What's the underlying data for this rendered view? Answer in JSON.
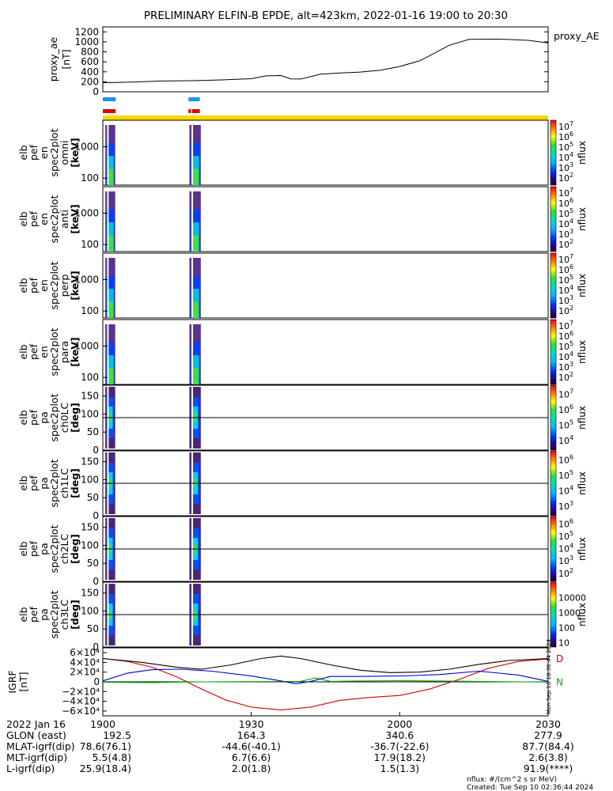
{
  "title": "PRELIMINARY ELFIN-B EPDE, alt=423km, 2022-01-16 19:00 to 20:30",
  "chart_data": [
    {
      "type": "line",
      "name": "proxy_ae",
      "ylabel": [
        "proxy_ae",
        "[nT]"
      ],
      "legend": "proxy_AE",
      "ylim": [
        0,
        1300
      ],
      "yticks": [
        0,
        200,
        400,
        600,
        800,
        1000,
        1200
      ],
      "xlim": [
        0,
        90
      ],
      "x": [
        0,
        6,
        12,
        18,
        24,
        30,
        33,
        36,
        38,
        40,
        44,
        48,
        52,
        56,
        60,
        64,
        66,
        70,
        74,
        78,
        80,
        82,
        86,
        90
      ],
      "y": [
        180,
        195,
        215,
        222,
        238,
        262,
        318,
        325,
        258,
        255,
        352,
        375,
        395,
        430,
        505,
        620,
        720,
        930,
        1050,
        1055,
        1055,
        1048,
        1030,
        980
      ]
    },
    {
      "type": "heatmap",
      "name": "spectrograms",
      "xlim": [
        0,
        90
      ],
      "science_zones": [
        [
          0.5,
          2.5
        ],
        [
          17.5,
          19.8
        ]
      ],
      "bars": [
        {
          "color": "#1E90FF",
          "segments": [
            [
              0,
              2.6
            ],
            [
              17.3,
              19.6
            ]
          ]
        },
        {
          "color": "#E00000",
          "segments": [
            [
              0,
              2.6
            ],
            [
              17.3,
              17.8
            ],
            [
              18.0,
              19.6
            ]
          ]
        },
        {
          "color": "#FFD700",
          "segments": [
            [
              0,
              90
            ]
          ]
        }
      ],
      "panels": [
        {
          "ylabel": [
            "elb",
            "pef",
            "en",
            "spec2plot",
            "omni",
            "[keV]"
          ],
          "yticks": [
            "100",
            "1000"
          ],
          "cbar_exps": [
            "2",
            "3",
            "4",
            "5",
            "6",
            "7"
          ],
          "cbar_label": "nflux"
        },
        {
          "ylabel": [
            "elb",
            "pef",
            "en",
            "spec2plot",
            "anti",
            "[keV]"
          ],
          "yticks": [
            "100",
            "1000"
          ],
          "cbar_exps": [
            "2",
            "3",
            "4",
            "5",
            "6",
            "7"
          ],
          "cbar_label": "nflux"
        },
        {
          "ylabel": [
            "elb",
            "pef",
            "en",
            "spec2plot",
            "perp",
            "[keV]"
          ],
          "yticks": [
            "100",
            "1000"
          ],
          "cbar_exps": [
            "2",
            "3",
            "4",
            "5",
            "6",
            "7"
          ],
          "cbar_label": "nflux"
        },
        {
          "ylabel": [
            "elb",
            "pef",
            "en",
            "spec2plot",
            "para",
            "[keV]"
          ],
          "yticks": [
            "100",
            "1000"
          ],
          "cbar_exps": [
            "2",
            "3",
            "4",
            "5",
            "6",
            "7"
          ],
          "cbar_label": "nflux"
        },
        {
          "ylabel": [
            "elb",
            "pef",
            "pa",
            "spec2plot",
            "ch0LC",
            "[deg]"
          ],
          "yticks": [
            "0",
            "50",
            "100",
            "150"
          ],
          "cbar_exps": [
            "4",
            "5",
            "6",
            "7"
          ],
          "cbar_label": "nflux"
        },
        {
          "ylabel": [
            "elb",
            "pef",
            "pa",
            "spec2plot",
            "ch1LC",
            "[deg]"
          ],
          "yticks": [
            "0",
            "50",
            "100",
            "150"
          ],
          "cbar_exps": [
            "3",
            "4",
            "5",
            "6"
          ],
          "cbar_label": "nflux"
        },
        {
          "ylabel": [
            "elb",
            "pef",
            "pa",
            "spec2plot",
            "ch2LC",
            "[deg]"
          ],
          "yticks": [
            "0",
            "50",
            "100",
            "150"
          ],
          "cbar_exps": [
            "2",
            "3",
            "4",
            "5",
            "6"
          ],
          "cbar_label": "nflux"
        },
        {
          "ylabel": [
            "elb",
            "pef",
            "pa",
            "spec2plot",
            "ch3LC",
            "[deg]"
          ],
          "yticks": [
            "0",
            "50",
            "100",
            "150"
          ],
          "cbar_labels": [
            "10",
            "100",
            "1000",
            "10000"
          ],
          "cbar_label": "nflux"
        }
      ]
    },
    {
      "type": "line",
      "name": "IGRF",
      "ylabel": [
        "IGRF",
        "[nT]"
      ],
      "ylim": [
        -70000,
        70000
      ],
      "yticks": [
        "6×10⁴",
        "4×10⁴",
        "2×10⁴",
        "0",
        "−2×10⁴",
        "−4×10⁴",
        "−6×10⁴"
      ],
      "xlim": [
        0,
        90
      ],
      "stamp": "Mon Sep 16 18:36:44 2024",
      "series": [
        {
          "name": "D",
          "color": "#D00000",
          "x": [
            0,
            5,
            10,
            15,
            20,
            25,
            30,
            36,
            42,
            48,
            54,
            60,
            66,
            72,
            78,
            84,
            90
          ],
          "y": [
            48000,
            42000,
            30000,
            10000,
            -15000,
            -38000,
            -52000,
            -58000,
            -52000,
            -38000,
            -32000,
            -28000,
            -15000,
            5000,
            28000,
            42000,
            47000
          ]
        },
        {
          "name": "N",
          "color": "#00B000",
          "x": [
            0,
            10,
            20,
            30,
            40,
            43,
            46,
            50,
            60,
            70,
            80,
            90
          ],
          "y": [
            -1000,
            -1500,
            0,
            500,
            1000,
            8000,
            1000,
            1500,
            2500,
            1500,
            500,
            -500
          ]
        },
        {
          "name": "",
          "color": "#0000CC",
          "x": [
            0,
            5,
            10,
            16,
            22,
            30,
            36,
            39,
            42,
            46,
            52,
            60,
            68,
            76,
            84,
            90
          ],
          "y": [
            2000,
            18000,
            25000,
            26000,
            22000,
            12000,
            2000,
            -4000,
            1000,
            11000,
            11000,
            12000,
            15000,
            22000,
            14000,
            1000
          ]
        },
        {
          "name": "",
          "color": "#000000",
          "x": [
            0,
            8,
            15,
            20,
            26,
            32,
            36,
            40,
            46,
            52,
            58,
            64,
            70,
            76,
            82,
            90
          ],
          "y": [
            48000,
            40000,
            30000,
            26000,
            35000,
            48000,
            53000,
            48000,
            35000,
            24000,
            19000,
            20000,
            26000,
            36000,
            44000,
            48000
          ]
        }
      ]
    }
  ],
  "time_axis": {
    "date_label": "2022 Jan 16",
    "rows": [
      {
        "label": "",
        "values": [
          "1900",
          "1930",
          "2000",
          "2030"
        ]
      },
      {
        "label": "GLON (east)",
        "values": [
          "192.5",
          "164.3",
          "340.6",
          "277.9"
        ]
      },
      {
        "label": "MLAT-igrf(dip)",
        "values": [
          "78.6(76.1)",
          "-44.6(-40.1)",
          "-36.7(-22.6)",
          "87.7(84.4)"
        ]
      },
      {
        "label": "MLT-igrf(dip)",
        "values": [
          "5.5(4.8)",
          "6.7(6.6)",
          "17.9(18.2)",
          "2.6(3.8)"
        ]
      },
      {
        "label": "L-igrf(dip)",
        "values": [
          "25.9(18.4)",
          "2.0(1.8)",
          "1.5(1.3)",
          "91.9(****)"
        ]
      }
    ]
  },
  "footer": {
    "units": "nflux: #/(cm^2 s sr MeV)",
    "created": "Created: Tue Sep 10 02:36:44 2024"
  }
}
